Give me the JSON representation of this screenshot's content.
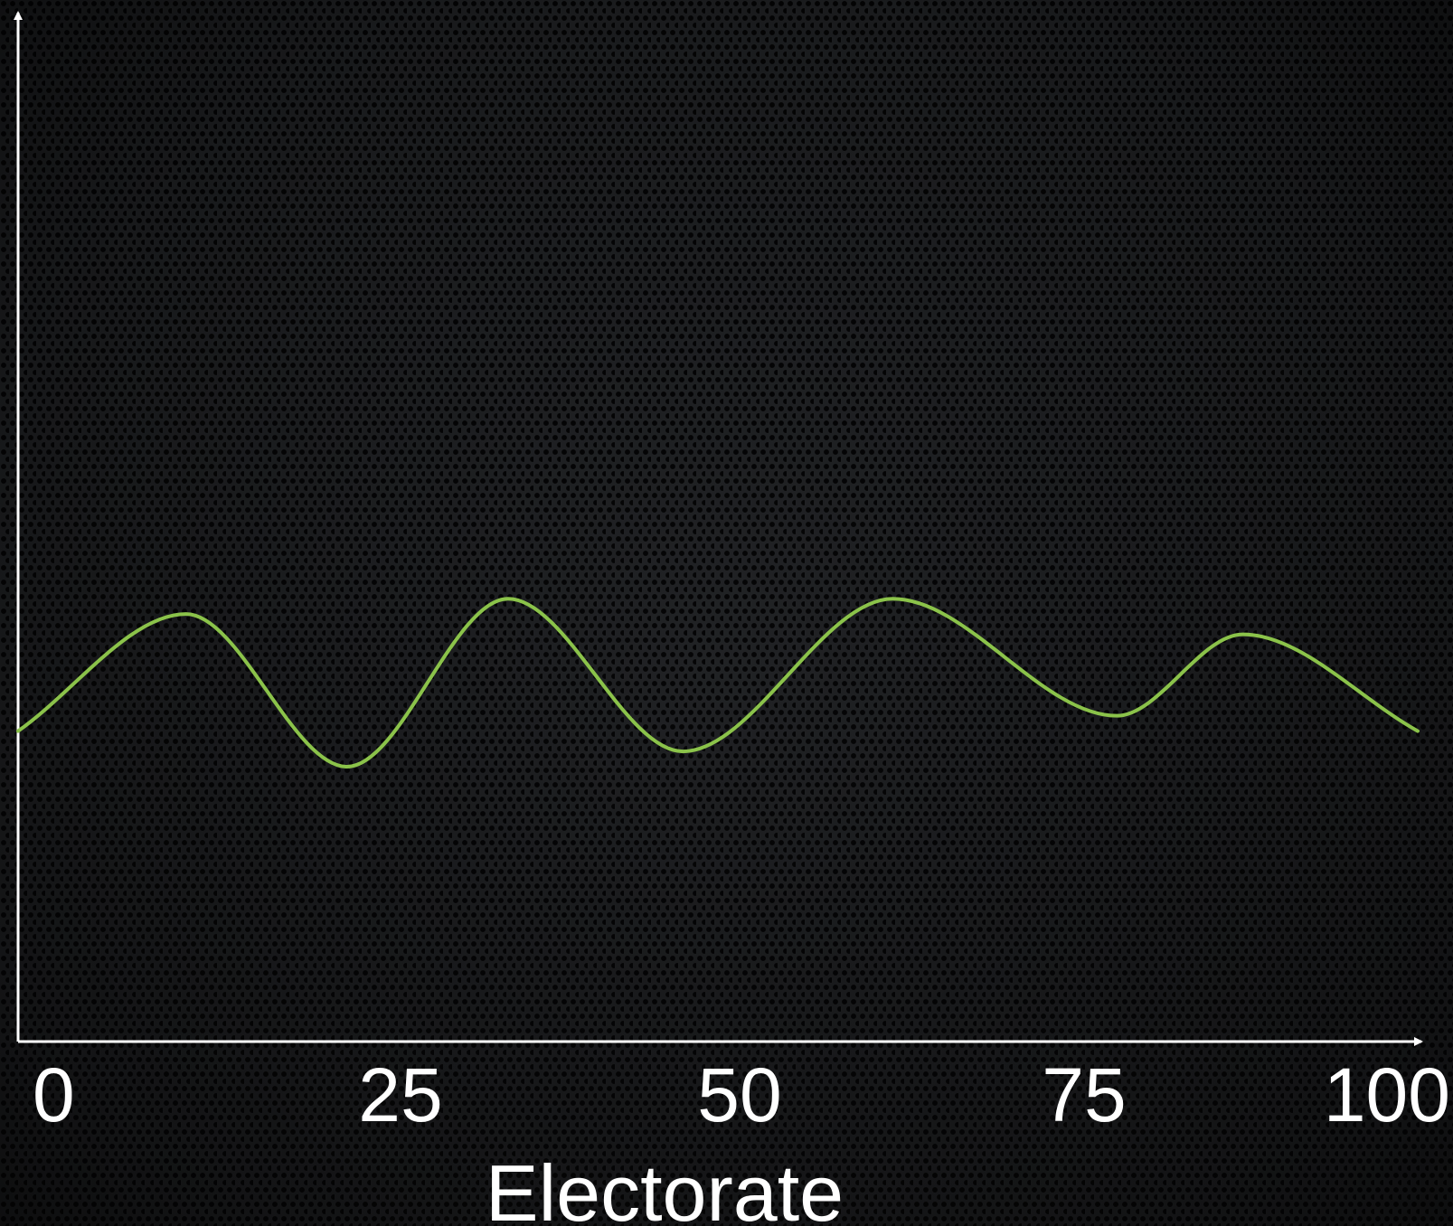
{
  "chart_data": {
    "type": "line",
    "title": "",
    "xlabel": "Electorate",
    "ylabel": "",
    "xlim": [
      0,
      100
    ],
    "ylim": [
      0,
      100
    ],
    "grid": false,
    "x_ticks": [
      "0",
      "25",
      "50",
      "75",
      "100"
    ],
    "x_tick_values": [
      0,
      25,
      50,
      75,
      100
    ],
    "series": [
      {
        "color": "#8bc34a",
        "x": [
          0,
          12,
          23.5,
          35,
          47.5,
          62.5,
          78.5,
          87.5,
          100
        ],
        "y": [
          30.5,
          42,
          27,
          43.5,
          28.5,
          43.5,
          32,
          40,
          30.5
        ]
      }
    ],
    "axis_color": "#ffffff"
  }
}
